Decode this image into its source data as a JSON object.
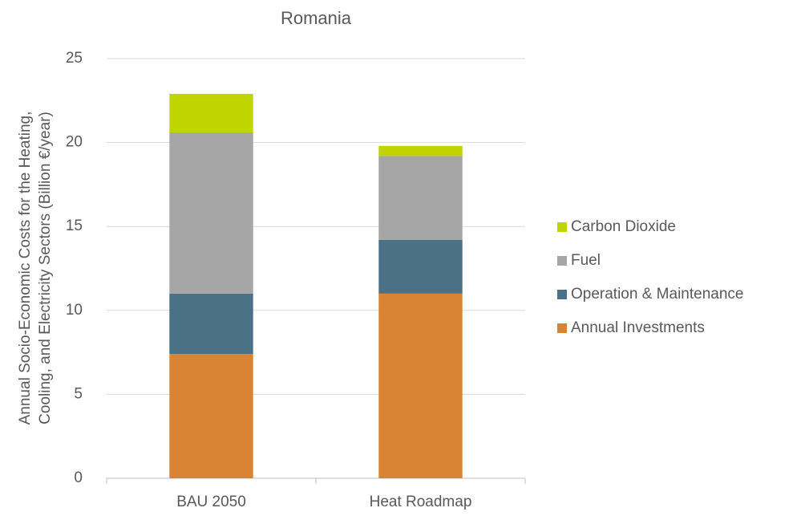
{
  "chart_data": {
    "type": "stacked_bar",
    "title": "Romania",
    "ylabel": [
      "Annual Socio-Economic Costs for the Heating,",
      "Cooling, and Electricity Sectors (Billion €/year)"
    ],
    "categories": [
      "BAU 2050",
      "Heat Roadmap"
    ],
    "series": [
      {
        "name": "Annual Investments",
        "color": "#d88434",
        "values": [
          7.4,
          11.0
        ]
      },
      {
        "name": "Operation & Maintenance",
        "color": "#4a7185",
        "values": [
          3.6,
          3.2
        ]
      },
      {
        "name": "Fuel",
        "color": "#a6a6a6",
        "values": [
          9.6,
          5.0
        ]
      },
      {
        "name": "Carbon Dioxide",
        "color": "#c0d400",
        "values": [
          2.3,
          0.6
        ]
      }
    ],
    "ylim": [
      0,
      25
    ],
    "yticks": [
      0,
      5,
      10,
      15,
      20,
      25
    ],
    "grid": true,
    "legend": "right"
  }
}
